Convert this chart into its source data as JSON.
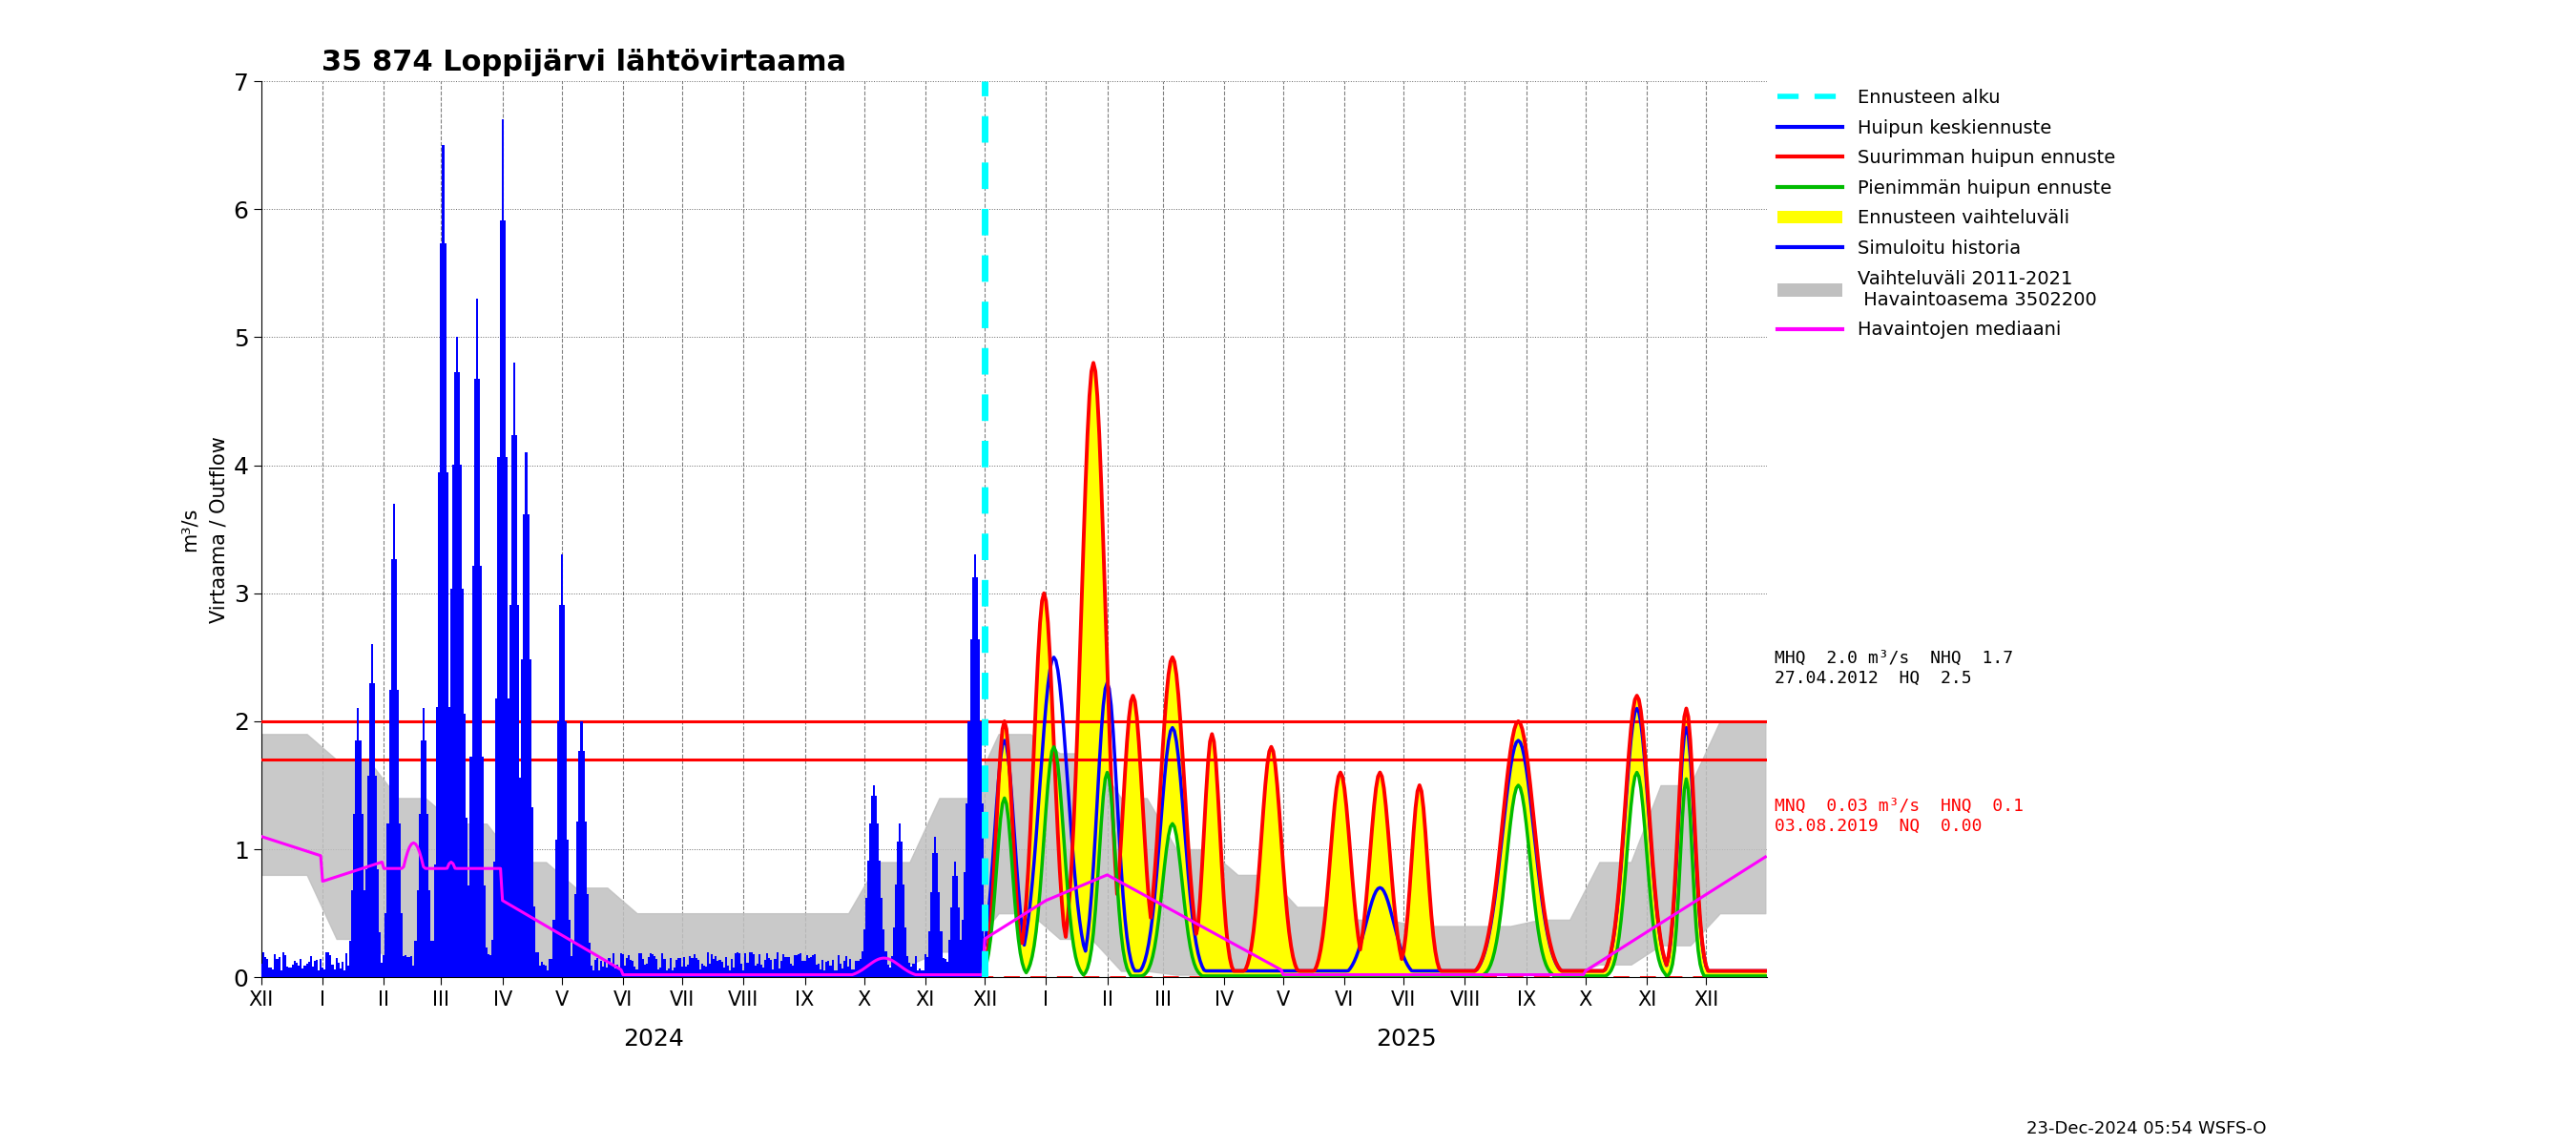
{
  "title": "35 874 Loppijärvi lähtövirtaama",
  "ylabel1": "Virtaama / Outflow",
  "ylabel2": "m³/s",
  "ylim": [
    0,
    7
  ],
  "yticks": [
    0,
    1,
    2,
    3,
    4,
    5,
    6,
    7
  ],
  "year_label_2024": "2024",
  "year_label_2025": "2025",
  "MHQ": 2.0,
  "NHQ": 1.7,
  "HQ_date": "27.04.2012",
  "HQ": 2.5,
  "MNQ": 0.03,
  "HNQ": 0.1,
  "NQ_date": "03.08.2019",
  "NQ": 0.0,
  "red_line1": 2.0,
  "red_line2": 1.7,
  "colors": {
    "forecast_start": "#00FFFF",
    "huipun_keskiennuste": "#0000FF",
    "suurimman_huipun": "#FF0000",
    "pienimman_huipun": "#00BB00",
    "ennusteen_vaihteluvali": "#FFFF00",
    "simuloitu_historia": "#0000FF",
    "vaihteluvali": "#C0C0C0",
    "mediaani": "#FF00FF",
    "red_lines": "#FF0000",
    "background": "#FFFFFF"
  },
  "footnote": "23-Dec-2024 05:54 WSFS-O"
}
